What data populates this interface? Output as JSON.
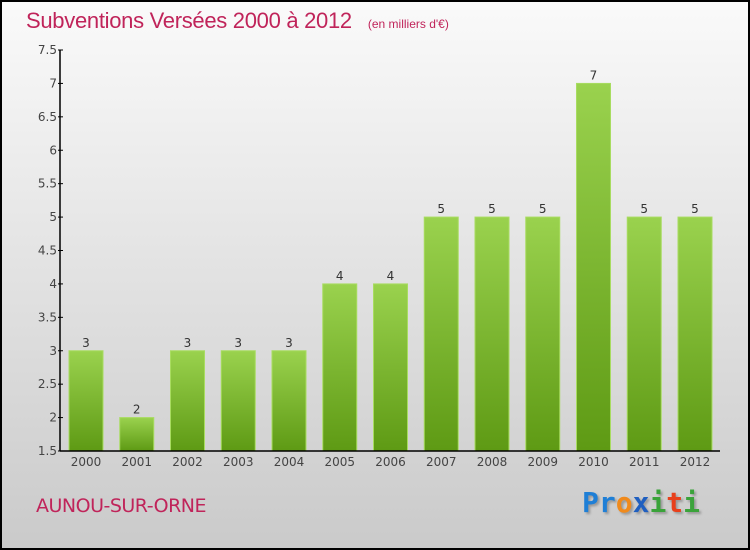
{
  "chart_data": {
    "type": "bar",
    "title": "Subventions Versées 2000 à 2012",
    "unit_label": "(en milliers d'€)",
    "categories": [
      "2000",
      "2001",
      "2002",
      "2003",
      "2004",
      "2005",
      "2006",
      "2007",
      "2008",
      "2009",
      "2010",
      "2011",
      "2012"
    ],
    "values": [
      3,
      2,
      3,
      3,
      3,
      4,
      4,
      5,
      5,
      5,
      7,
      5,
      5
    ],
    "ylim": [
      1.5,
      7.5
    ],
    "yticks": [
      1.5,
      2,
      2.5,
      3,
      3.5,
      4,
      4.5,
      5,
      5.5,
      6,
      6.5,
      7,
      7.5
    ],
    "xlabel": "",
    "ylabel": "",
    "grid": false,
    "bar_color": "#7cb82f"
  },
  "commune": "AUNOU-SUR-ORNE",
  "logo": {
    "letters": [
      "P",
      "r",
      "o",
      "x",
      "i",
      "t",
      "i"
    ],
    "colors": [
      "#1f7fd6",
      "#1f7fd6",
      "#f08a1c",
      "#1f5fc0",
      "#3aa33a",
      "#e8401c",
      "#3aa33a"
    ]
  }
}
